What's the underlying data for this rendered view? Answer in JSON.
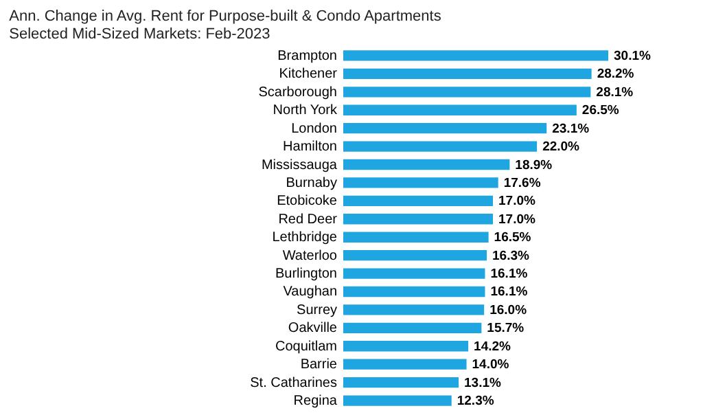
{
  "chart_data": {
    "type": "bar",
    "orientation": "horizontal",
    "title": "Ann. Change in Avg. Rent for Purpose-built & Condo Apartments",
    "subtitle": "Selected Mid-Sized Markets: Feb-2023",
    "categories": [
      "Brampton",
      "Kitchener",
      "Scarborough",
      "North York",
      "London",
      "Hamilton",
      "Mississauga",
      "Burnaby",
      "Etobicoke",
      "Red Deer",
      "Lethbridge",
      "Waterloo",
      "Burlington",
      "Vaughan",
      "Surrey",
      "Oakville",
      "Coquitlam",
      "Barrie",
      "St. Catharines",
      "Regina"
    ],
    "values": [
      30.1,
      28.2,
      28.1,
      26.5,
      23.1,
      22.0,
      18.9,
      17.6,
      17.0,
      17.0,
      16.5,
      16.3,
      16.1,
      16.1,
      16.0,
      15.7,
      14.2,
      14.0,
      13.1,
      12.3
    ],
    "value_labels": [
      "30.1%",
      "28.2%",
      "28.1%",
      "26.5%",
      "23.1%",
      "22.0%",
      "18.9%",
      "17.6%",
      "17.0%",
      "17.0%",
      "16.5%",
      "16.3%",
      "16.1%",
      "16.1%",
      "16.0%",
      "15.7%",
      "14.2%",
      "14.0%",
      "13.1%",
      "12.3%"
    ],
    "color": "#1fa5e0"
  }
}
